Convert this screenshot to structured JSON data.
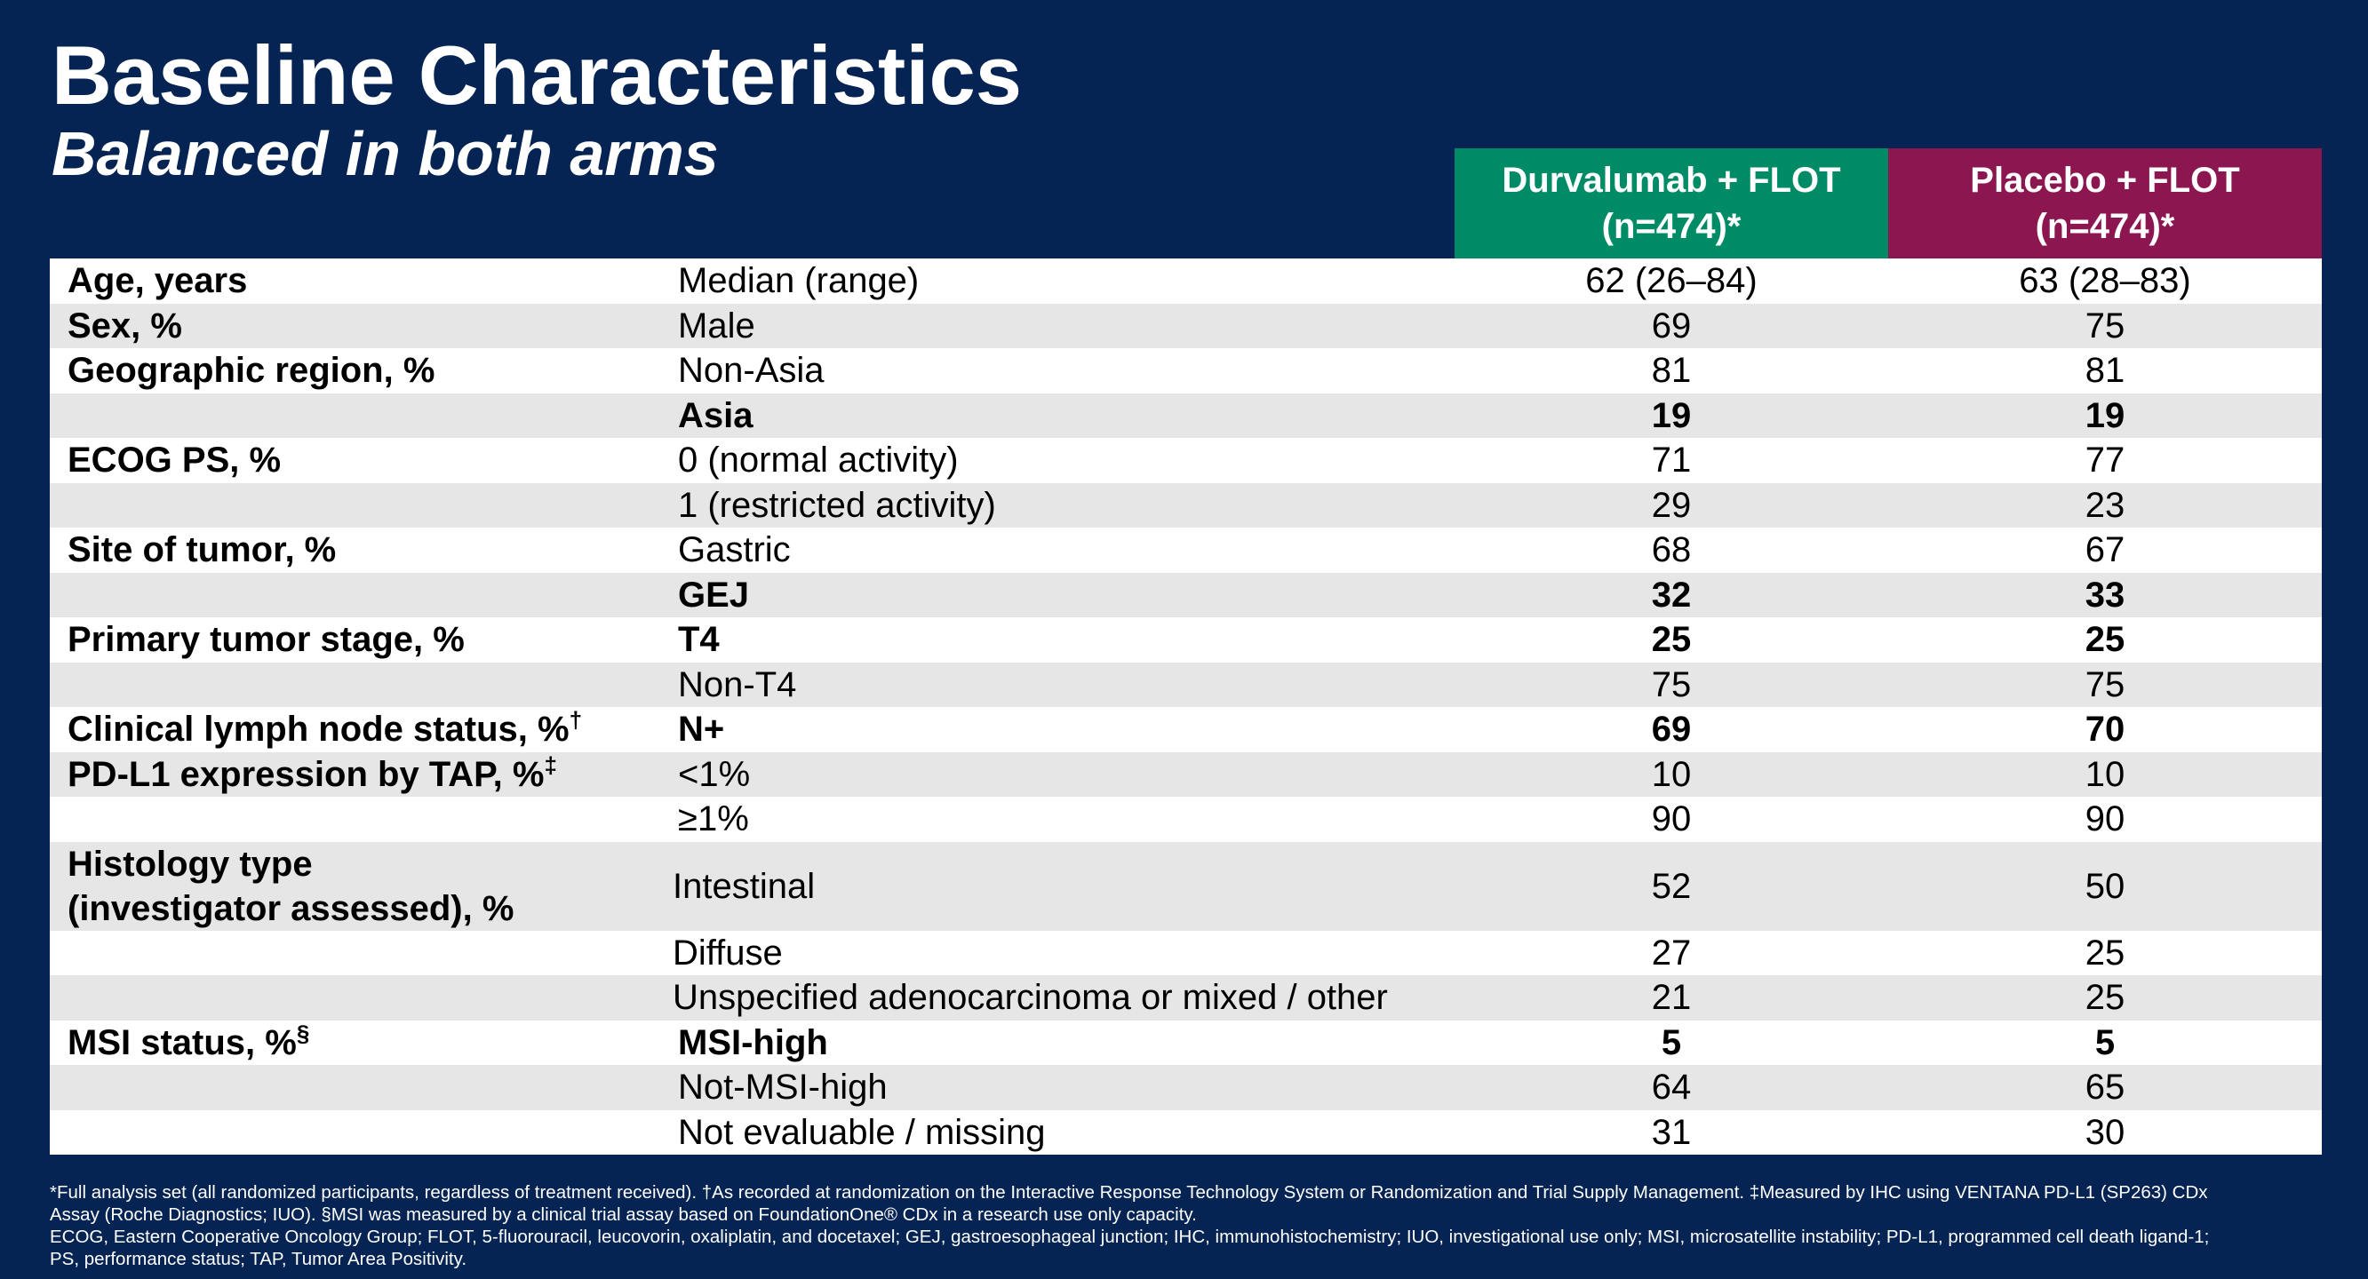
{
  "title": "Baseline Characteristics",
  "subtitle": "Balanced in both arms",
  "columns": {
    "arm1": {
      "line1": "Durvalumab + FLOT",
      "line2": "(n=474)*"
    },
    "arm2": {
      "line1": "Placebo + FLOT",
      "line2": "(n=474)*"
    }
  },
  "colors": {
    "background": "#052453",
    "arm1": "#008b67",
    "arm2": "#8c1650",
    "row_alt": "#e6e6e6"
  },
  "rows": [
    {
      "label": "Age, years",
      "sub": "Median (range)",
      "v1": "62 (26–84)",
      "v2": "63 (28–83)",
      "bold": false
    },
    {
      "label": "Sex, %",
      "sub": "Male",
      "v1": "69",
      "v2": "75",
      "bold": false
    },
    {
      "label": "Geographic region, %",
      "sub": "Non-Asia",
      "v1": "81",
      "v2": "81",
      "bold": false
    },
    {
      "label": "",
      "sub": "Asia",
      "v1": "19",
      "v2": "19",
      "bold": true
    },
    {
      "label": "ECOG PS, %",
      "sub": "0 (normal activity)",
      "v1": "71",
      "v2": "77",
      "bold": false
    },
    {
      "label": "",
      "sub": "1 (restricted activity)",
      "v1": "29",
      "v2": "23",
      "bold": false
    },
    {
      "label": "Site of tumor, %",
      "sub": "Gastric",
      "v1": "68",
      "v2": "67",
      "bold": false
    },
    {
      "label": "",
      "sub": "GEJ",
      "v1": "32",
      "v2": "33",
      "bold": true
    },
    {
      "label": "Primary tumor stage, %",
      "sub": "T4",
      "v1": "25",
      "v2": "25",
      "bold": true
    },
    {
      "label": "",
      "sub": "Non-T4",
      "v1": "75",
      "v2": "75",
      "bold": false
    },
    {
      "label": "Clinical lymph node status, %",
      "sup": "†",
      "sub": "N+",
      "v1": "69",
      "v2": "70",
      "bold": true
    },
    {
      "label": "PD-L1 expression by TAP, %",
      "sup": "‡",
      "sub": "<1%",
      "v1": "10",
      "v2": "10",
      "bold": false
    },
    {
      "label": "",
      "sub": "≥1%",
      "v1": "90",
      "v2": "90",
      "bold": false
    },
    {
      "label": "Histology type",
      "label2": "(investigator assessed), %",
      "sub": "Intestinal",
      "v1": "52",
      "v2": "50",
      "bold": false
    },
    {
      "label": "",
      "sub": "Diffuse",
      "v1": "27",
      "v2": "25",
      "bold": false
    },
    {
      "label": "",
      "sub": "Unspecified adenocarcinoma or mixed / other",
      "v1": "21",
      "v2": "25",
      "bold": false
    },
    {
      "label": "MSI status, %",
      "sup": "§",
      "sub": "MSI-high",
      "v1": "5",
      "v2": "5",
      "bold": true
    },
    {
      "label": "",
      "sub": "Not-MSI-high",
      "v1": "64",
      "v2": "65",
      "bold": false
    },
    {
      "label": "",
      "sub": "Not evaluable / missing",
      "v1": "31",
      "v2": "30",
      "bold": false
    }
  ],
  "footnotes": {
    "line1": "*Full analysis set (all randomized participants, regardless of treatment received). †As recorded at randomization on the Interactive Response Technology System or Randomization and Trial Supply Management. ‡Measured by IHC using VENTANA PD-L1 (SP263) CDx",
    "line2": "Assay (Roche Diagnostics; IUO). §MSI was measured by a clinical trial assay based on FoundationOne® CDx in a research use only capacity.",
    "line3": "ECOG, Eastern Cooperative Oncology Group; FLOT, 5-fluorouracil, leucovorin, oxaliplatin, and docetaxel; GEJ, gastroesophageal junction; IHC, immunohistochemistry; IUO, investigational use only; MSI, microsatellite instability; PD-L1, programmed cell death ligand-1;",
    "line4": "PS, performance status; TAP, Tumor Area Positivity."
  }
}
